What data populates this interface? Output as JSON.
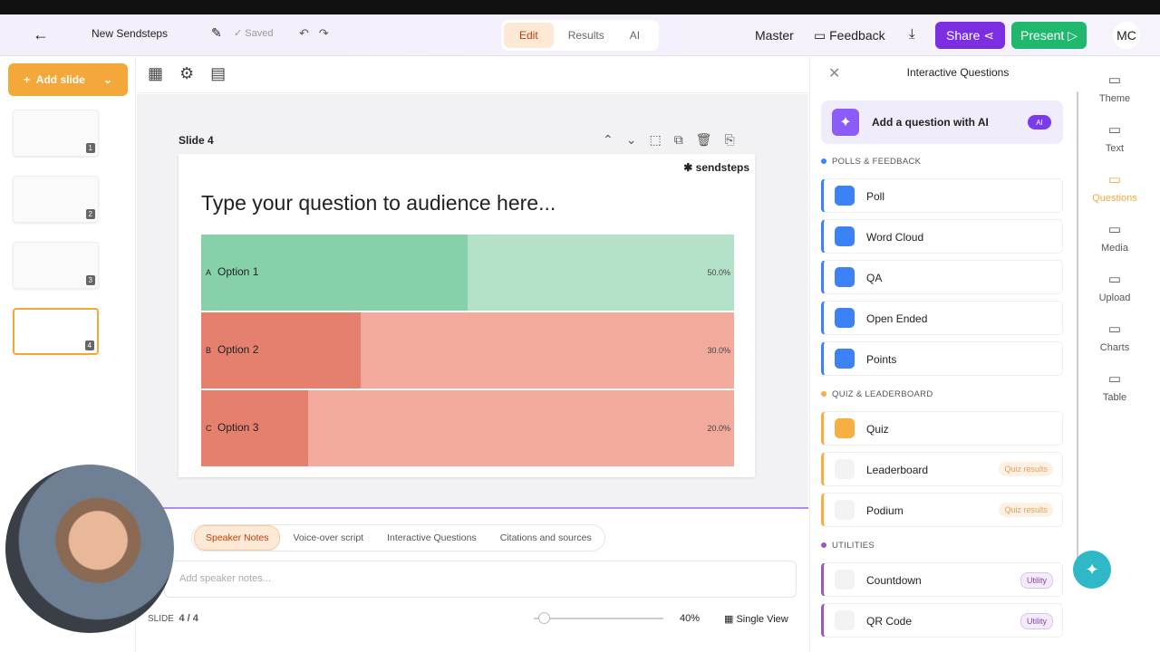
{
  "header": {
    "title": "New Sendsteps",
    "status": "Saved",
    "tabs": [
      "Edit",
      "Results",
      "AI"
    ],
    "actions": [
      "Master",
      "Feedback"
    ],
    "share": "Share",
    "present": "Present",
    "avatar": "MC"
  },
  "sidebar": {
    "add_slide": "Add slide",
    "slides": [
      "1",
      "2",
      "3",
      "4"
    ]
  },
  "slide": {
    "label": "Slide 4",
    "brand": "sendsteps",
    "question": "Type your question to audience here...",
    "options": [
      {
        "letter": "A",
        "text": "Option 1",
        "value": 50,
        "label": "50.0%"
      },
      {
        "letter": "B",
        "text": "Option 2",
        "value": 30,
        "label": "30.0%"
      },
      {
        "letter": "C",
        "text": "Option 3",
        "value": 20,
        "label": "20.0%"
      }
    ]
  },
  "panel": {
    "title": "Interactive Questions",
    "ai": "Add a question with AI",
    "ai_badge": "AI",
    "sections": [
      {
        "title": "POLLS & FEEDBACK",
        "items": [
          {
            "label": "Poll"
          },
          {
            "label": "Word Cloud"
          },
          {
            "label": "QA"
          },
          {
            "label": "Open Ended"
          },
          {
            "label": "Points"
          }
        ]
      },
      {
        "title": "QUIZ & LEADERBOARD",
        "items": [
          {
            "label": "Quiz"
          },
          {
            "label": "Leaderboard",
            "badge": "Quiz results"
          },
          {
            "label": "Podium",
            "badge": "Quiz results"
          }
        ]
      },
      {
        "title": "UTILITIES",
        "items": [
          {
            "label": "Countdown",
            "badge": "Utility"
          },
          {
            "label": "QR Code",
            "badge": "Utility"
          }
        ]
      }
    ]
  },
  "rail": [
    "Theme",
    "Text",
    "Questions",
    "Media",
    "Upload",
    "Charts",
    "Table"
  ],
  "notes": {
    "tabs": [
      "Speaker Notes",
      "Voice-over script",
      "Interactive Questions",
      "Citations and sources"
    ],
    "placeholder": "Add speaker notes...",
    "slide_label": "SLIDE",
    "slide_count": "4 / 4",
    "zoom": "40%",
    "view": "Single View"
  }
}
